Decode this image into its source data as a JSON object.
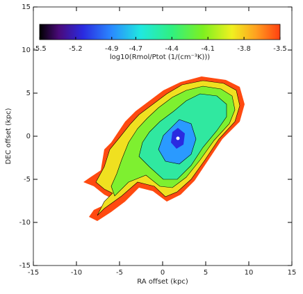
{
  "chart_data": {
    "type": "contour",
    "xlabel": "RA offset (kpc)",
    "ylabel": "DEC offset (kpc)",
    "xlim": [
      -15,
      15
    ],
    "xticks": [
      -15,
      -10,
      -5,
      0,
      5,
      10,
      15
    ],
    "ylim": [
      -15,
      15
    ],
    "yticks": [
      -15,
      -10,
      -5,
      0,
      5,
      10,
      15
    ],
    "colorbar": {
      "label": "log10(Rmol/Ptot (1/(cm⁻³K)))",
      "lim": [
        -5.5,
        -3.5
      ],
      "ticks": [
        -5.5,
        -5.2,
        -4.9,
        -4.7,
        -4.4,
        -4.1,
        -3.8,
        -3.5
      ]
    }
  }
}
